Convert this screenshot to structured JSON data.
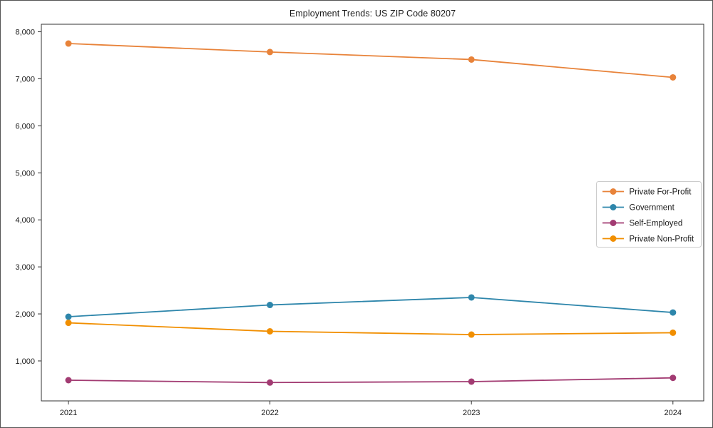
{
  "figure": {
    "title": "Employment Trends: US ZIP Code 80207"
  },
  "chart_data": {
    "type": "line",
    "title": "Employment Trends: US ZIP Code 80207",
    "xlabel": "",
    "ylabel": "",
    "x": [
      2021,
      2022,
      2023,
      2024
    ],
    "x_labels": [
      "2021",
      "2022",
      "2023",
      "2024"
    ],
    "series": [
      {
        "name": "Private For-Profit",
        "color": "#e8833a",
        "values": [
          7750,
          7570,
          7410,
          7030
        ]
      },
      {
        "name": "Government",
        "color": "#2e86ab",
        "values": [
          1940,
          2190,
          2350,
          2030
        ]
      },
      {
        "name": "Self-Employed",
        "color": "#a23b72",
        "values": [
          590,
          540,
          560,
          640
        ]
      },
      {
        "name": "Private Non-Profit",
        "color": "#f18f01",
        "values": [
          1810,
          1630,
          1560,
          1600
        ]
      }
    ],
    "ylim": [
      150,
      8160
    ],
    "yticks": [
      {
        "value": 1000,
        "label": "1,000"
      },
      {
        "value": 2000,
        "label": "2,000"
      },
      {
        "value": 3000,
        "label": "3,000"
      },
      {
        "value": 4000,
        "label": "4,000"
      },
      {
        "value": 5000,
        "label": "5,000"
      },
      {
        "value": 6000,
        "label": "6,000"
      },
      {
        "value": 7000,
        "label": "7,000"
      },
      {
        "value": 8000,
        "label": "8,000"
      }
    ],
    "grid": false,
    "legend_position": "right-center",
    "axis_color": "#333333",
    "text_color": "#1a1a1a",
    "legend_border_color": "#cccccc",
    "background": "#ffffff"
  }
}
